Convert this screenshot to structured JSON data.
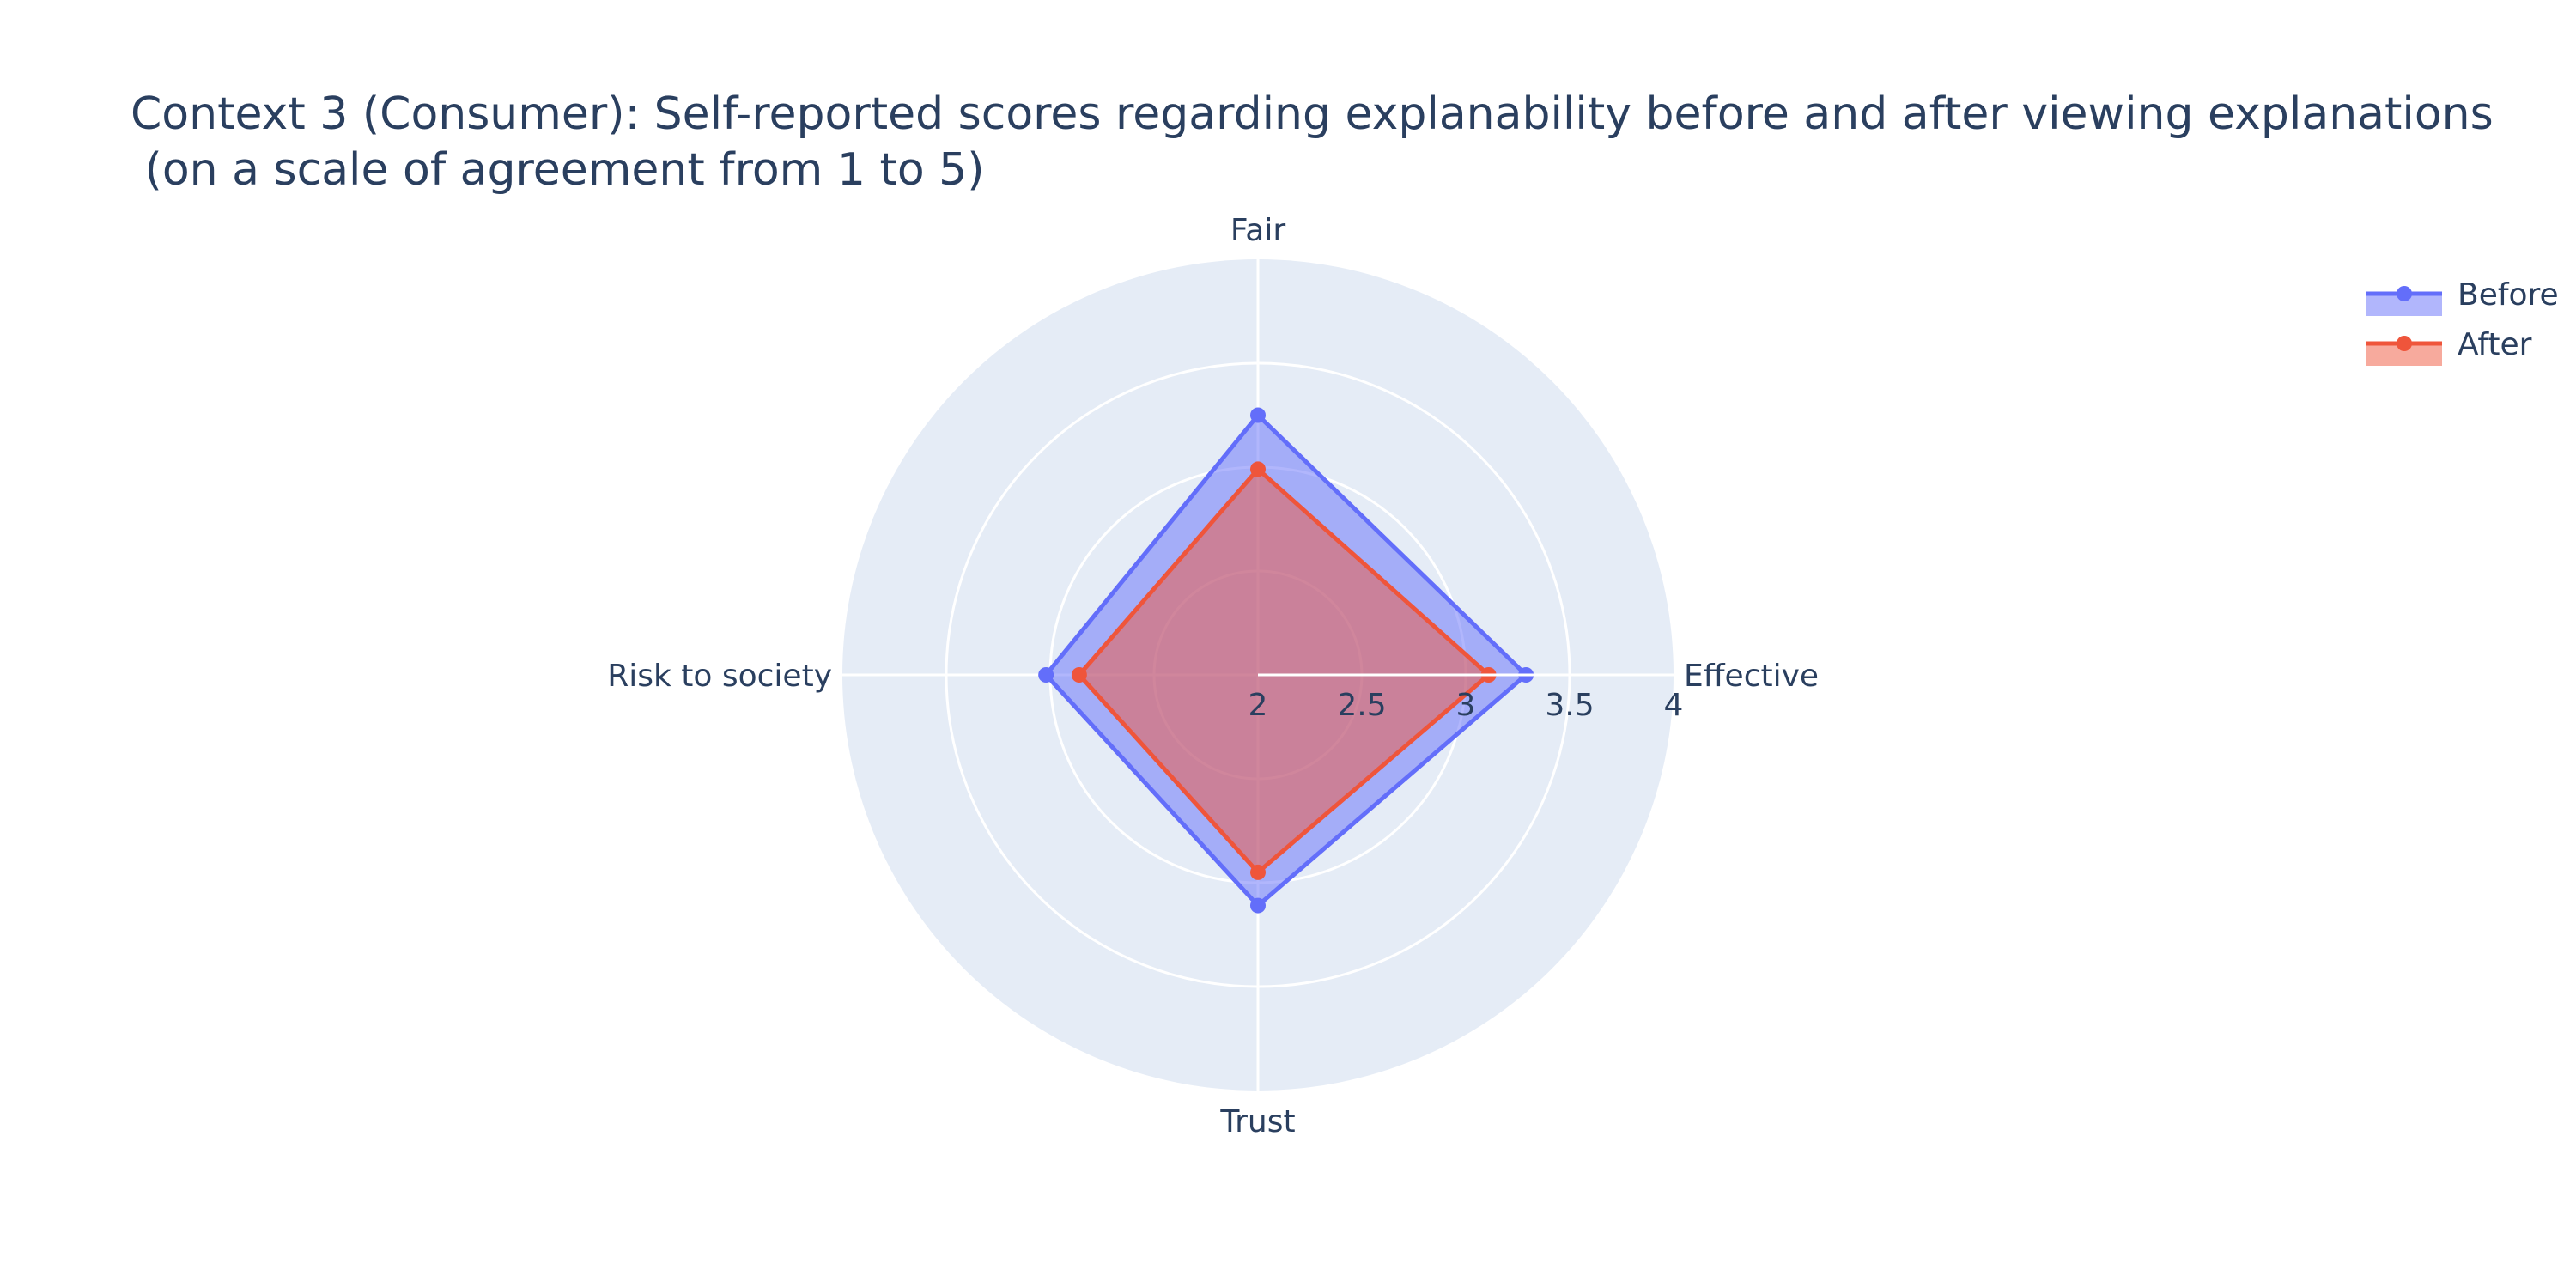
{
  "colors": {
    "background": "#ffffff",
    "polar_bg": "#e5ecf6",
    "grid": "#ffffff",
    "text": "#2a3f5f",
    "before": "#636efa",
    "after": "#ef553b"
  },
  "chart_data": {
    "type": "radar",
    "title": "Context 3 (Consumer): Self-reported scores regarding explanability before and after viewing explanations",
    "subtitle": " (on a scale of agreement from 1 to 5)",
    "categories": [
      "Effective",
      "Fair",
      "Risk to society",
      "Trust"
    ],
    "radial_range": [
      2,
      4
    ],
    "radial_ticks": [
      "2",
      "2.5",
      "3",
      "3.5",
      "4"
    ],
    "radial_tick_values": [
      2,
      2.5,
      3,
      3.5,
      4
    ],
    "series": [
      {
        "name": "Before",
        "values": [
          3.29,
          3.25,
          3.02,
          3.11
        ]
      },
      {
        "name": "After",
        "values": [
          3.11,
          2.99,
          2.86,
          2.95
        ]
      }
    ],
    "legend": "top-right",
    "grid": true
  }
}
